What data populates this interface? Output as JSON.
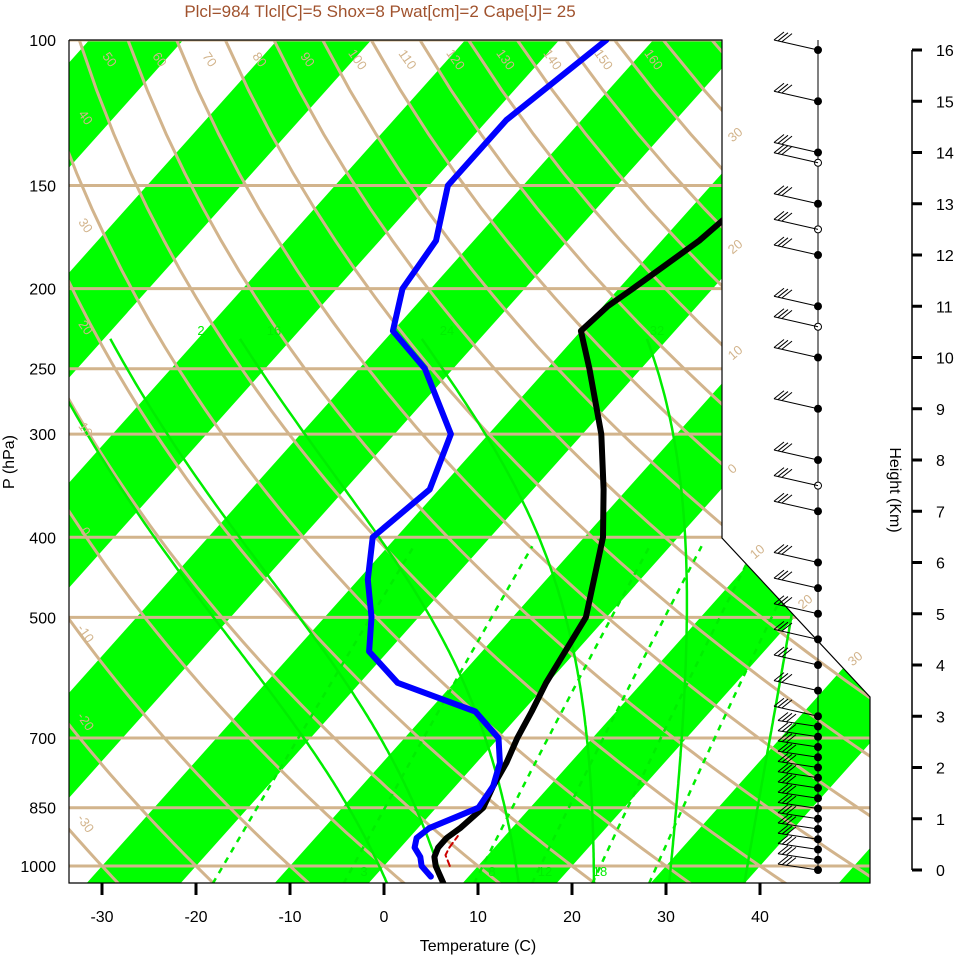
{
  "colors": {
    "isotherm_band": "#00ff00",
    "reference_lines": "#d2b48c",
    "moist_adiabat": "#00ee00",
    "temperature": "#000000",
    "dewpoint": "#0000ff",
    "parcel": "#cc0000",
    "title": "#a0522d"
  },
  "chart_data": {
    "type": "line",
    "chart_kind": "skew-t log-p sounding",
    "title": "Plcl=984 Tlcl[C]=5 Shox=8 Pwat[cm]=2 Cape[J]= 25",
    "xlabel": "Temperature (C)",
    "ylabel": "P (hPa)",
    "y2label": "Height (Km)",
    "x_ticks": [
      -30,
      -20,
      -10,
      0,
      10,
      20,
      30,
      40
    ],
    "pressure_ticks": [
      100,
      150,
      200,
      250,
      300,
      400,
      500,
      700,
      850,
      1000
    ],
    "height_ticks": [
      0,
      1,
      2,
      3,
      4,
      5,
      6,
      7,
      8,
      9,
      10,
      11,
      12,
      13,
      14,
      15,
      16
    ],
    "xlim": [
      -33.6,
      36.0
    ],
    "plim": [
      1050,
      100
    ],
    "log_pressure": true,
    "skewed_isotherms": true,
    "series": [
      {
        "name": "temperature",
        "points": [
          {
            "p": 1050,
            "t": 8.0
          },
          {
            "p": 1000,
            "t": 5.5
          },
          {
            "p": 975,
            "t": 4.5
          },
          {
            "p": 950,
            "t": 4.0
          },
          {
            "p": 925,
            "t": 4.0
          },
          {
            "p": 900,
            "t": 4.5
          },
          {
            "p": 850,
            "t": 5.0
          },
          {
            "p": 800,
            "t": 4.0
          },
          {
            "p": 750,
            "t": 3.2
          },
          {
            "p": 700,
            "t": 2.0
          },
          {
            "p": 650,
            "t": 1.0
          },
          {
            "p": 600,
            "t": -0.2
          },
          {
            "p": 500,
            "t": -2.2
          },
          {
            "p": 400,
            "t": -8.0
          },
          {
            "p": 350,
            "t": -12.5
          },
          {
            "p": 300,
            "t": -18.0
          },
          {
            "p": 250,
            "t": -25.5
          },
          {
            "p": 225,
            "t": -30.0
          },
          {
            "p": 210,
            "t": -29.5
          },
          {
            "p": 200,
            "t": -28.5
          },
          {
            "p": 175,
            "t": -26.0
          },
          {
            "p": 150,
            "t": -24.5
          },
          {
            "p": 125,
            "t": -25.5
          },
          {
            "p": 110,
            "t": -28.5
          },
          {
            "p": 100,
            "t": -30.0
          }
        ]
      },
      {
        "name": "dewpoint",
        "points": [
          {
            "p": 1030,
            "t": 6.0
          },
          {
            "p": 1000,
            "t": 4.0
          },
          {
            "p": 975,
            "t": 3.0
          },
          {
            "p": 950,
            "t": 1.5
          },
          {
            "p": 925,
            "t": 0.8
          },
          {
            "p": 900,
            "t": 1.2
          },
          {
            "p": 850,
            "t": 4.5
          },
          {
            "p": 800,
            "t": 4.0
          },
          {
            "p": 750,
            "t": 2.5
          },
          {
            "p": 700,
            "t": 0.0
          },
          {
            "p": 650,
            "t": -5.0
          },
          {
            "p": 600,
            "t": -16.0
          },
          {
            "p": 550,
            "t": -22.0
          },
          {
            "p": 500,
            "t": -25.0
          },
          {
            "p": 450,
            "t": -29.0
          },
          {
            "p": 400,
            "t": -32.5
          },
          {
            "p": 350,
            "t": -31.0
          },
          {
            "p": 300,
            "t": -34.0
          },
          {
            "p": 250,
            "t": -43.0
          },
          {
            "p": 225,
            "t": -50.0
          },
          {
            "p": 200,
            "t": -53.0
          },
          {
            "p": 175,
            "t": -54.0
          },
          {
            "p": 150,
            "t": -58.0
          },
          {
            "p": 125,
            "t": -58.0
          },
          {
            "p": 100,
            "t": -55.0
          }
        ]
      },
      {
        "name": "parcel",
        "points": [
          {
            "p": 1000,
            "t": 7.0
          },
          {
            "p": 970,
            "t": 5.5
          },
          {
            "p": 950,
            "t": 5.2
          },
          {
            "p": 920,
            "t": 5.0
          }
        ]
      }
    ],
    "mixing_ratio_labels": [
      "3",
      "8",
      "12",
      "18"
    ],
    "moist_adiabat_labels": [
      "2",
      "16",
      "24",
      "32"
    ],
    "dry_adiabat_labels": [
      "50",
      "60",
      "70",
      "80",
      "90",
      "100",
      "110",
      "120",
      "130",
      "140",
      "150",
      "160"
    ],
    "side_labels": [
      "40",
      "30",
      "20",
      "10",
      "0",
      "-10",
      "-20",
      "-30"
    ],
    "right_labels": [
      "30",
      "20",
      "10",
      "0",
      "10",
      "20",
      "30"
    ],
    "wind_barbs": {
      "levels_km": [
        0,
        0.2,
        0.4,
        0.6,
        0.8,
        1.0,
        1.2,
        1.4,
        1.6,
        1.8,
        2.0,
        2.2,
        2.4,
        2.6,
        2.8,
        3.0,
        3.5,
        4.0,
        4.5,
        5.0,
        5.5,
        6.0,
        7.0,
        7.5,
        8.0,
        9.0,
        10.0,
        10.6,
        11.0,
        12.0,
        12.5,
        13.0,
        13.8,
        14.0,
        15.0,
        16.0
      ]
    }
  }
}
